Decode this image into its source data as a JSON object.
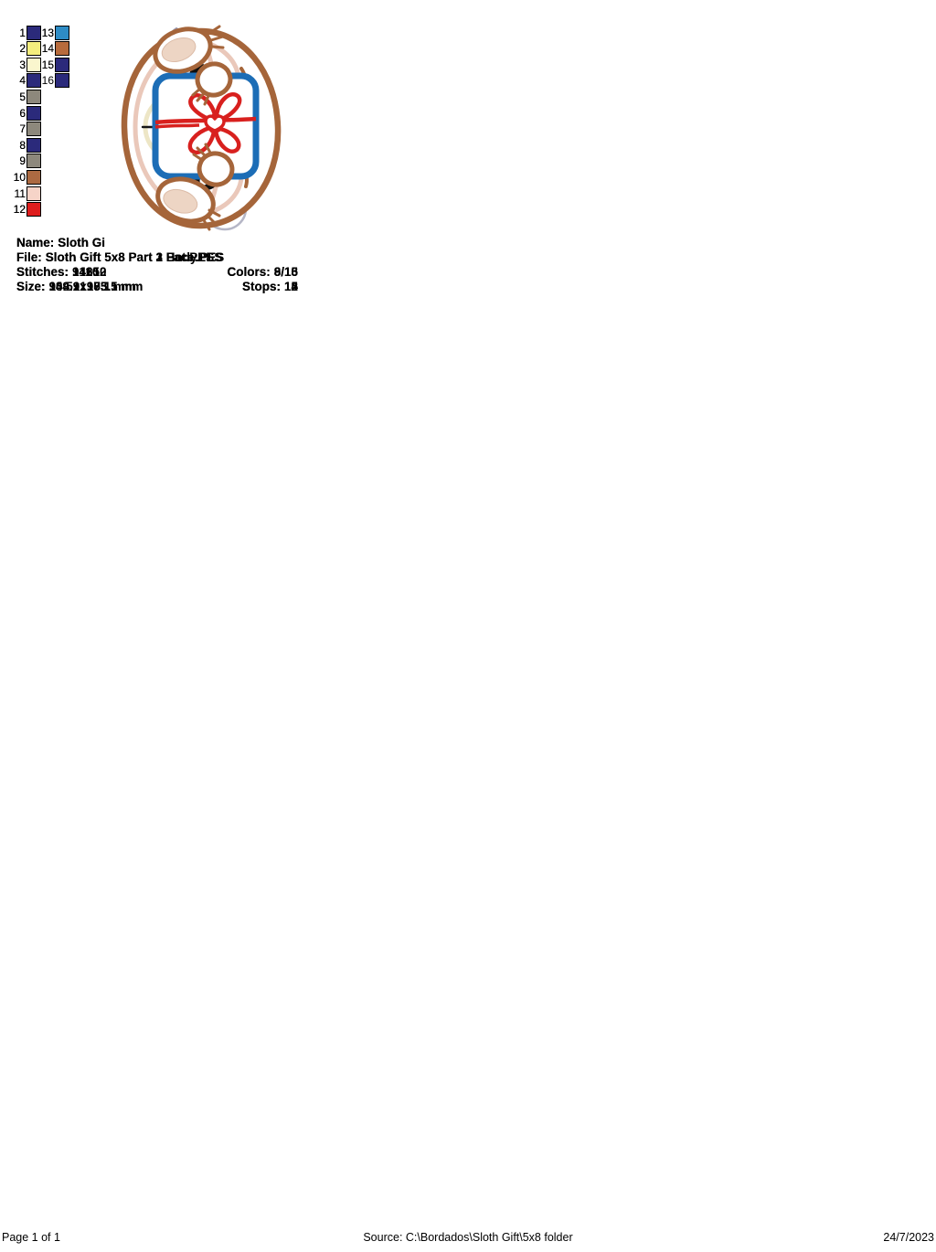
{
  "panels": [
    {
      "design": "santa-hat",
      "info": {
        "name_label": "Name:",
        "name_value": "Sloth Gi",
        "file_label": "File:",
        "file_value": "Sloth Gift 5x8 Part 3 Hat.PES",
        "stitches_label": "Stitches:",
        "stitches_value": "9110",
        "colors_label": "Colors:",
        "colors_value": "8/13",
        "size_label": "Size:",
        "size_value": "104.9x185.1 mm",
        "stops_label": "Stops:",
        "stops_value": "12"
      },
      "palette": [
        {
          "n": "1",
          "hex": "#2B2A7B"
        },
        {
          "n": "2",
          "hex": "#F4EE7E"
        },
        {
          "n": "3",
          "hex": "#FAF6CE"
        },
        {
          "n": "4",
          "hex": "#2B2A7B"
        },
        {
          "n": "5",
          "hex": "#8D887C"
        },
        {
          "n": "6",
          "hex": "#2B2A7B"
        },
        {
          "n": "7",
          "hex": "#8D887C"
        },
        {
          "n": "8",
          "hex": "#E01A1A"
        },
        {
          "n": "9",
          "hex": "#FFFFFF"
        },
        {
          "n": "10",
          "hex": "#2BA02B"
        },
        {
          "n": "11",
          "hex": "#166616"
        },
        {
          "n": "12",
          "hex": "#E01A1A"
        },
        {
          "n": "13",
          "hex": "#2B2A7B"
        }
      ]
    },
    {
      "design": "sloth-face",
      "info": {
        "name_label": "Name:",
        "name_value": "Sloth Gi",
        "file_label": "File:",
        "file_value": "Sloth Gift 5x8 Part 2 Face.PES",
        "stitches_label": "Stitches:",
        "stitches_value": "14252",
        "colors_label": "Colors:",
        "colors_value": "9/16",
        "size_label": "Size:",
        "size_value": "139.1x173.5 mm",
        "stops_label": "Stops:",
        "stops_value": "15"
      },
      "palette": [
        {
          "n": "1",
          "hex": "#2B2A7B"
        },
        {
          "n": "2",
          "hex": "#F4EE7E"
        },
        {
          "n": "3",
          "hex": "#FAF6CE"
        },
        {
          "n": "4",
          "hex": "#2B2A7B"
        },
        {
          "n": "5",
          "hex": "#8A7D6C"
        },
        {
          "n": "6",
          "hex": "#2B2A7B"
        },
        {
          "n": "7",
          "hex": "#8A7D6C"
        },
        {
          "n": "8",
          "hex": "#2B2A7B"
        },
        {
          "n": "9",
          "hex": "#8A7D6C"
        },
        {
          "n": "10",
          "hex": "#F1C3B3"
        },
        {
          "n": "11",
          "hex": "#000000"
        },
        {
          "n": "12",
          "hex": "#FAF6CE"
        },
        {
          "n": "13",
          "hex": "#7B4A1B"
        },
        {
          "n": "14",
          "hex": "#FFFFFF"
        },
        {
          "n": "15",
          "hex": "#BE7040"
        },
        {
          "n": "16",
          "hex": "#2B2A7B"
        }
      ]
    },
    {
      "design": "sloth-body-gift",
      "info": {
        "name_label": "Name:",
        "name_value": "Sloth Gi",
        "file_label": "File:",
        "file_value": "Sloth Gift 5x8 Part 1 Body.PES",
        "stitches_label": "Stitches:",
        "stitches_value": "14610",
        "colors_label": "Colors:",
        "colors_value": "8/15",
        "size_label": "Size:",
        "size_value": "94.5x190.1 mm",
        "stops_label": "Stops:",
        "stops_value": "14"
      },
      "palette": [
        {
          "n": "1",
          "hex": "#2B2A7B"
        },
        {
          "n": "2",
          "hex": "#F4EE7E"
        },
        {
          "n": "3",
          "hex": "#FAF6CE"
        },
        {
          "n": "4",
          "hex": "#2B2A7B"
        },
        {
          "n": "5",
          "hex": "#8D887C"
        },
        {
          "n": "6",
          "hex": "#2B2A7B"
        },
        {
          "n": "7",
          "hex": "#8D887C"
        },
        {
          "n": "8",
          "hex": "#2B2A7B"
        },
        {
          "n": "9",
          "hex": "#8D887C"
        },
        {
          "n": "10",
          "hex": "#AC6A42"
        },
        {
          "n": "11",
          "hex": "#F6D4C8"
        },
        {
          "n": "12",
          "hex": "#DE1D1D"
        },
        {
          "n": "13",
          "hex": "#2E8CC5"
        },
        {
          "n": "14",
          "hex": "#B76B3C"
        },
        {
          "n": "15",
          "hex": "#2B2A7B"
        }
      ]
    }
  ],
  "footer": {
    "page_label": "Page 1 of 1",
    "source": "Source: C:\\Bordados\\Sloth Gift\\5x8 folder",
    "date": "24/7/2023"
  }
}
